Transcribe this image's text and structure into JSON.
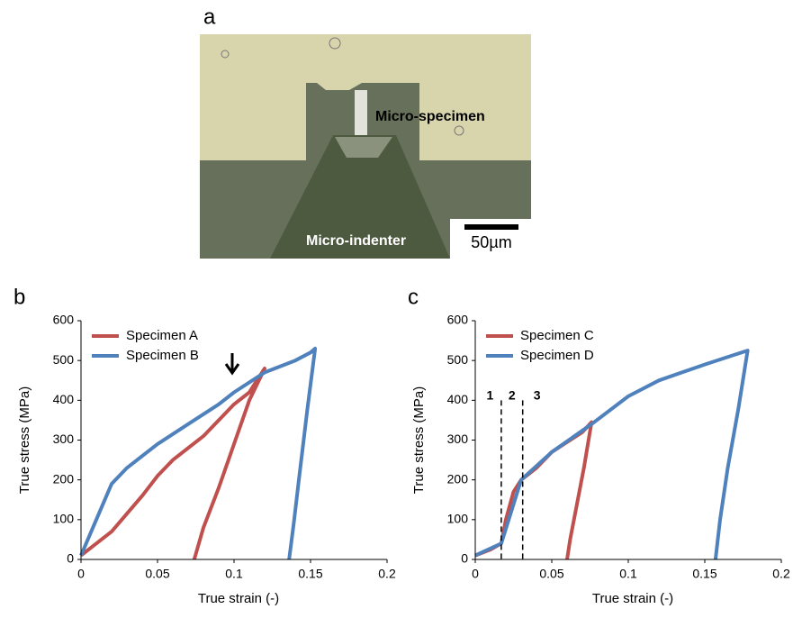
{
  "figure": {
    "panel_a": {
      "label": "a",
      "specimen_label": "Micro-specimen",
      "indenter_label": "Micro-indenter",
      "scale_bar": "50µm"
    }
  },
  "chart_data": [
    {
      "type": "line",
      "panel_label": "b",
      "x_label": "True strain (-)",
      "y_label": "True stress (MPa)",
      "xlim": [
        0,
        0.2
      ],
      "xticks": [
        0,
        0.05,
        0.1,
        0.15,
        0.2
      ],
      "ylim": [
        0,
        600
      ],
      "yticks": [
        0,
        100,
        200,
        300,
        400,
        500,
        600
      ],
      "legend": "top-left",
      "grid": false,
      "series": [
        {
          "name": "Specimen A",
          "color": "#c0504d",
          "x": [
            0,
            0.02,
            0.04,
            0.05,
            0.06,
            0.08,
            0.1,
            0.11,
            0.12,
            0.11,
            0.1,
            0.09,
            0.08,
            0.074
          ],
          "values": [
            10,
            70,
            160,
            210,
            250,
            310,
            390,
            420,
            480,
            400,
            290,
            180,
            80,
            0
          ]
        },
        {
          "name": "Specimen B",
          "color": "#4f81bd",
          "x": [
            0,
            0.01,
            0.02,
            0.03,
            0.05,
            0.07,
            0.09,
            0.1,
            0.12,
            0.14,
            0.15,
            0.153,
            0.148,
            0.143,
            0.139,
            0.136
          ],
          "values": [
            10,
            100,
            190,
            230,
            290,
            340,
            390,
            420,
            470,
            500,
            520,
            530,
            380,
            220,
            90,
            0
          ]
        }
      ]
    },
    {
      "type": "line",
      "panel_label": "c",
      "x_label": "True strain (-)",
      "y_label": "True stress (MPa)",
      "xlim": [
        0,
        0.2
      ],
      "xticks": [
        0,
        0.05,
        0.1,
        0.15,
        0.2
      ],
      "ylim": [
        0,
        600
      ],
      "yticks": [
        0,
        100,
        200,
        300,
        400,
        500,
        600
      ],
      "legend": "top-left",
      "grid": false,
      "phase_lines": [
        0.017,
        0.031
      ],
      "phase_labels": [
        "1",
        "2",
        "3"
      ],
      "series": [
        {
          "name": "Specimen C",
          "color": "#c0504d",
          "x": [
            0,
            0.01,
            0.017,
            0.02,
            0.025,
            0.03,
            0.04,
            0.05,
            0.06,
            0.07,
            0.076,
            0.071,
            0.066,
            0.062,
            0.06
          ],
          "values": [
            10,
            25,
            40,
            100,
            170,
            200,
            230,
            270,
            295,
            320,
            345,
            230,
            130,
            50,
            0
          ]
        },
        {
          "name": "Specimen D",
          "color": "#4f81bd",
          "x": [
            0,
            0.017,
            0.03,
            0.05,
            0.076,
            0.1,
            0.12,
            0.15,
            0.17,
            0.178,
            0.172,
            0.165,
            0.16,
            0.157
          ],
          "values": [
            10,
            40,
            200,
            270,
            340,
            410,
            450,
            490,
            515,
            525,
            380,
            230,
            100,
            0
          ]
        }
      ]
    }
  ]
}
